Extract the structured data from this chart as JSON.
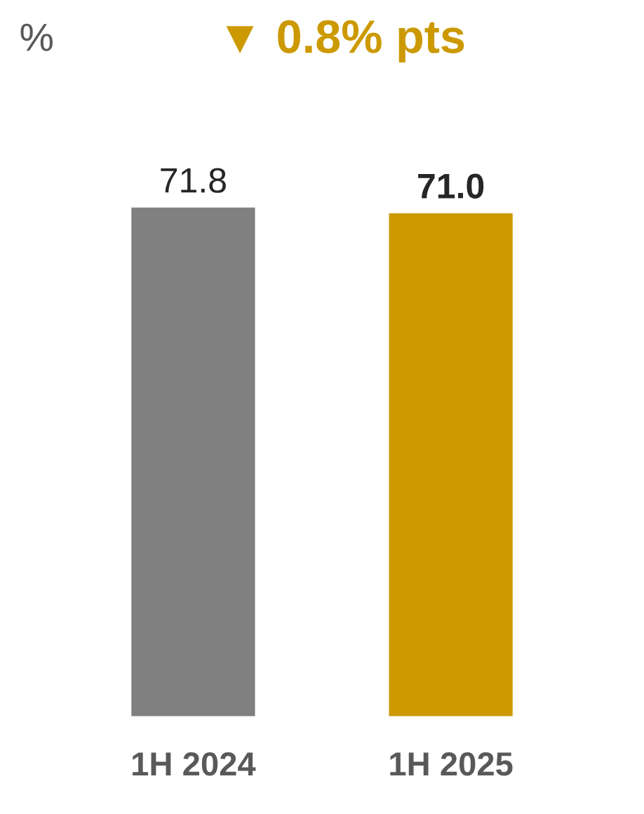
{
  "chart_data": {
    "type": "bar",
    "title": "▼ 0.8% pts",
    "ylabel": "%",
    "categories": [
      "1H 2024",
      "1H 2025"
    ],
    "values": [
      71.8,
      71.0
    ],
    "colors": [
      "#808080",
      "#cc9900"
    ],
    "value_labels": [
      "71.8",
      "71.0"
    ],
    "grid": false,
    "legend": false
  }
}
